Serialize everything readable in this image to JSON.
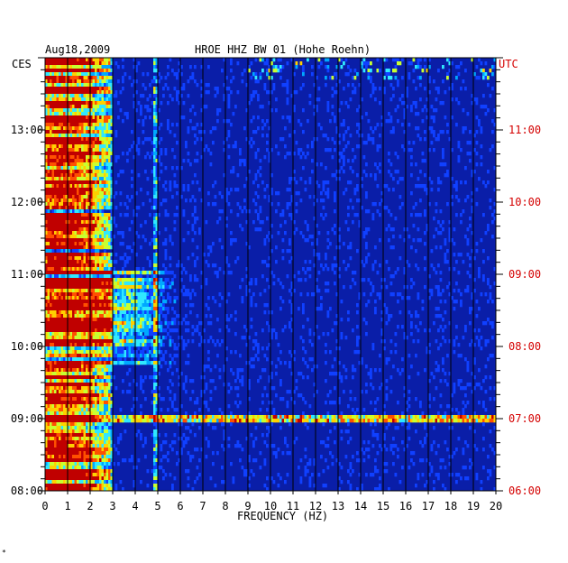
{
  "header": {
    "date": "Aug18,2009",
    "station": "HROE HHZ BW 01 (Hohe Roehn)"
  },
  "left_tz": "CES",
  "right_tz": "UTC",
  "footer_mark": "*",
  "colors": {
    "background": "#0a1ea8",
    "gridline": "#000000",
    "right_axis_text": "#d40000",
    "palette": [
      "#0a1ea8",
      "#1040ff",
      "#00a8ff",
      "#30e8ff",
      "#c8ff30",
      "#ffd000",
      "#ff5000",
      "#c00000"
    ]
  },
  "chart_data": {
    "type": "heatmap",
    "title": "HROE HHZ BW 01 (Hohe Roehn)",
    "date": "Aug18,2009",
    "xlabel": "FREQUENCY (HZ)",
    "xlim": [
      0,
      20
    ],
    "x_ticks": [
      "0",
      "1",
      "2",
      "3",
      "4",
      "5",
      "6",
      "7",
      "8",
      "9",
      "10",
      "11",
      "12",
      "13",
      "14",
      "15",
      "16",
      "17",
      "18",
      "19",
      "20"
    ],
    "y_left_label": "CES",
    "y_right_label": "UTC",
    "y_left_ticks": [
      "13:00",
      "12:00",
      "11:00",
      "10:00",
      "09:00",
      "08:00"
    ],
    "y_right_ticks": [
      "11:00",
      "10:00",
      "09:00",
      "08:00",
      "07:00",
      "06:00"
    ],
    "y_ticks_value_hours_ces": [
      13,
      12,
      11,
      10,
      9,
      8
    ],
    "ylim_hours_ces": [
      8,
      14
    ],
    "grid": true,
    "description_values": {
      "strong_low_freq_band_hz": [
        0,
        3
      ],
      "persistent_line_hz": 4.9,
      "high_energy_period_ces": [
        "09:45",
        "11:00"
      ],
      "broadband_event_ces": "09:00"
    }
  }
}
